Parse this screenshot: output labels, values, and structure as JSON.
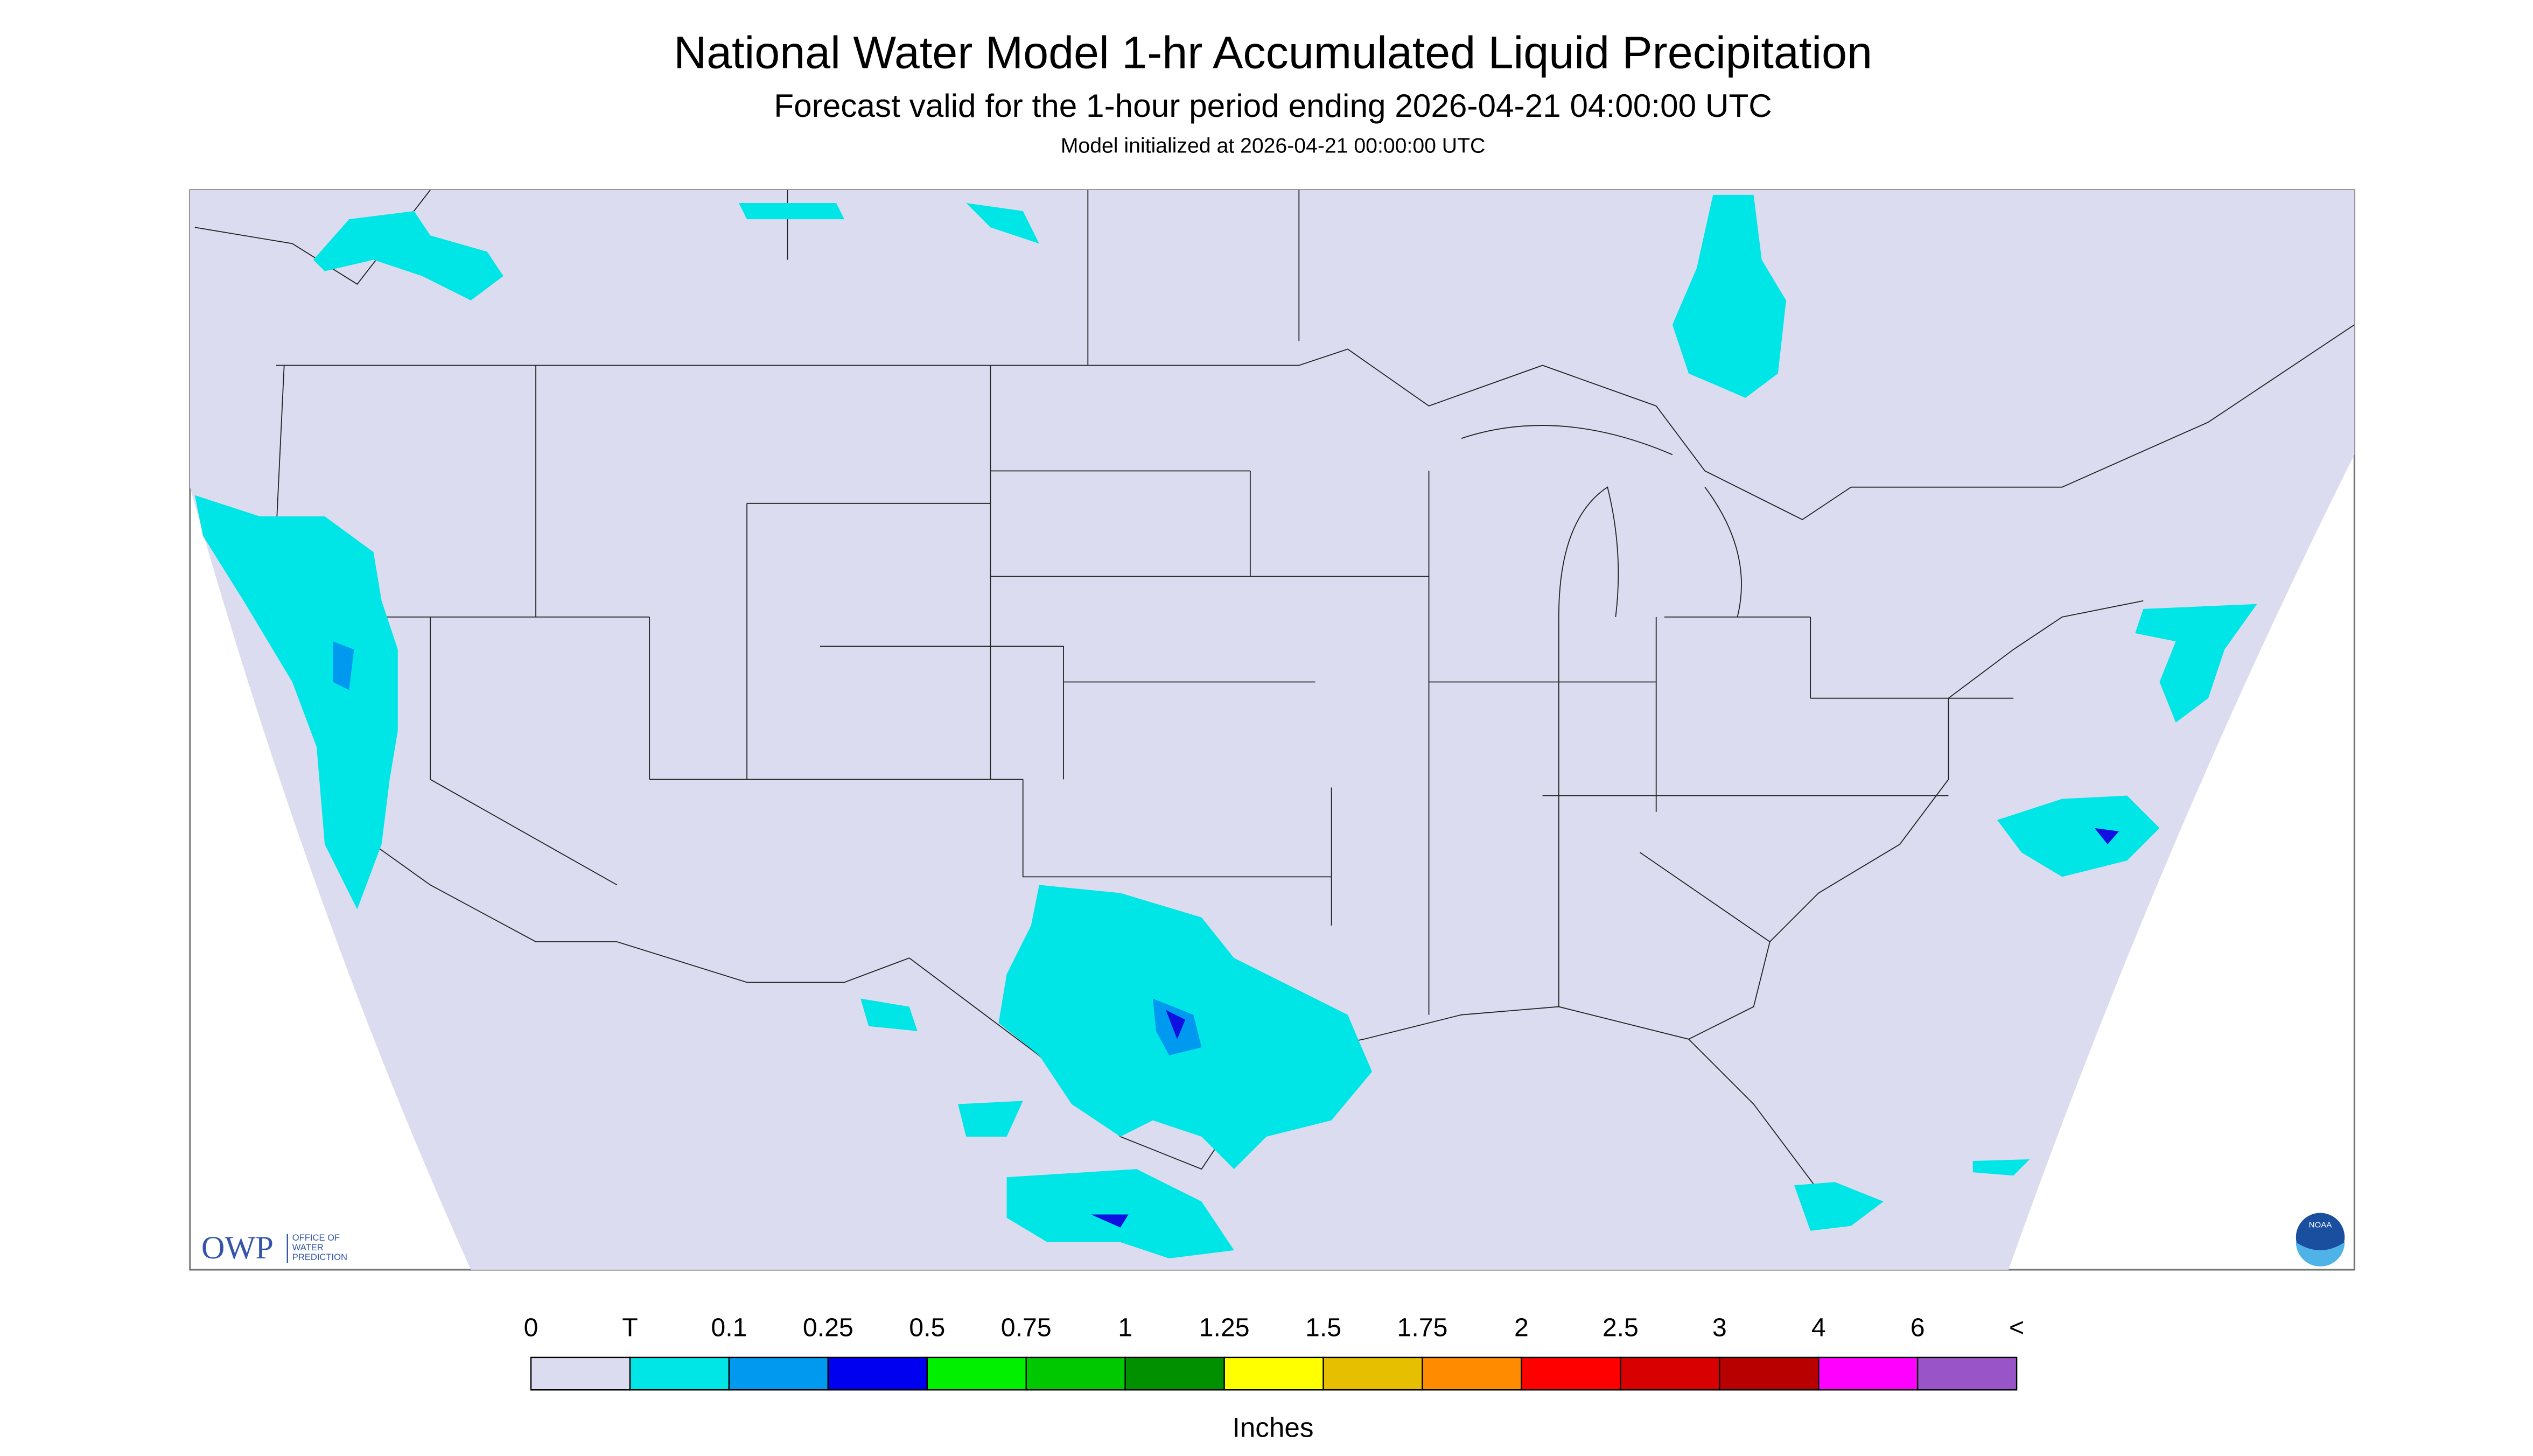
{
  "header": {
    "title": "National Water Model 1-hr Accumulated Liquid Precipitation",
    "subtitle": "Forecast valid for the 1-hour period ending 2026-04-21 04:00:00 UTC",
    "init": "Model initialized at 2026-04-21 00:00:00 UTC"
  },
  "logo": {
    "owp": "OWP",
    "office": [
      "OFFICE OF",
      "WATER",
      "PREDICTION"
    ],
    "noaa": "NOAA"
  },
  "legend": {
    "labels": [
      "0",
      "T",
      "0.1",
      "0.25",
      "0.5",
      "0.75",
      "1",
      "1.25",
      "1.5",
      "1.75",
      "2",
      "2.5",
      "3",
      "4",
      "6",
      "<"
    ],
    "colors": [
      "#dcdcf0",
      "#00e5e5",
      "#0099f0",
      "#0000f0",
      "#00f000",
      "#00c800",
      "#009000",
      "#ffff00",
      "#e6c000",
      "#ff8c00",
      "#ff0000",
      "#d80000",
      "#b80000",
      "#ff00ff",
      "#9955c8"
    ],
    "units": "Inches"
  }
}
